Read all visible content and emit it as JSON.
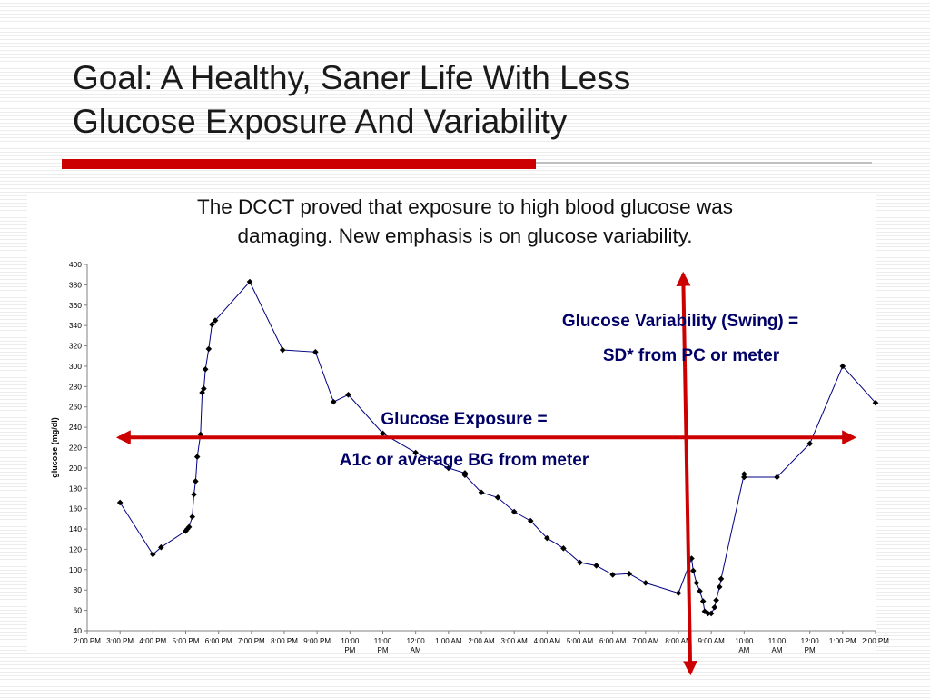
{
  "slide": {
    "title_line1": "Goal: A Healthy, Saner Life With Less",
    "title_line2": "Glucose Exposure And Variability",
    "subtitle_line1": "The DCCT proved that exposure to high blood glucose was",
    "subtitle_line2": "damaging. New emphasis is on glucose variability.",
    "accent_color": "#cc0000"
  },
  "annotations": {
    "variability_line1": "Glucose Variability (Swing) =",
    "variability_line2": "SD* from  PC or meter",
    "exposure_line1": "Glucose Exposure =",
    "exposure_line2": "A1c or average BG from meter",
    "text_color": "#000066",
    "arrow_color": "#cc0000"
  },
  "chart_data": {
    "type": "line",
    "title": "",
    "xlabel": "",
    "ylabel": "glucose (mg/dl)",
    "ylim": [
      40,
      400
    ],
    "yticks": [
      40,
      60,
      80,
      100,
      120,
      140,
      160,
      180,
      200,
      220,
      240,
      260,
      280,
      300,
      320,
      340,
      360,
      380,
      400
    ],
    "xlim": [
      14,
      38
    ],
    "x_units": "hours from midnight of day 1 (e.g. 14 = 2:00 PM, 24 = 12:00 AM, 38 = 2:00 PM next day)",
    "xticks": [
      {
        "x": 14,
        "label": "2:00 PM"
      },
      {
        "x": 15,
        "label": "3:00 PM"
      },
      {
        "x": 16,
        "label": "4:00 PM"
      },
      {
        "x": 17,
        "label": "5:00 PM"
      },
      {
        "x": 18,
        "label": "6:00 PM"
      },
      {
        "x": 19,
        "label": "7:00 PM"
      },
      {
        "x": 20,
        "label": "8:00 PM"
      },
      {
        "x": 21,
        "label": "9:00 PM"
      },
      {
        "x": 22,
        "label": "10:00 PM"
      },
      {
        "x": 23,
        "label": "11:00 PM"
      },
      {
        "x": 24,
        "label": "12:00 AM"
      },
      {
        "x": 25,
        "label": "1:00 AM"
      },
      {
        "x": 26,
        "label": "2:00 AM"
      },
      {
        "x": 27,
        "label": "3:00 AM"
      },
      {
        "x": 28,
        "label": "4:00 AM"
      },
      {
        "x": 29,
        "label": "5:00 AM"
      },
      {
        "x": 30,
        "label": "6:00 AM"
      },
      {
        "x": 31,
        "label": "7:00 AM"
      },
      {
        "x": 32,
        "label": "8:00 AM"
      },
      {
        "x": 33,
        "label": "9:00 AM"
      },
      {
        "x": 34,
        "label": "10:00 AM"
      },
      {
        "x": 35,
        "label": "11:00 AM"
      },
      {
        "x": 36,
        "label": "12:00 PM"
      },
      {
        "x": 37,
        "label": "1:00 PM"
      },
      {
        "x": 38,
        "label": "2:00 PM"
      }
    ],
    "grid": false,
    "series": [
      {
        "color": "#000080",
        "marker": "diamond",
        "points": [
          [
            15.0,
            166
          ],
          [
            16.0,
            115
          ],
          [
            16.25,
            122
          ],
          [
            17.0,
            138
          ],
          [
            17.05,
            140
          ],
          [
            17.1,
            142
          ],
          [
            17.2,
            152
          ],
          [
            17.25,
            174
          ],
          [
            17.3,
            187
          ],
          [
            17.35,
            211
          ],
          [
            17.45,
            233
          ],
          [
            17.5,
            274
          ],
          [
            17.55,
            278
          ],
          [
            17.6,
            297
          ],
          [
            17.7,
            317
          ],
          [
            17.8,
            341
          ],
          [
            17.9,
            345
          ],
          [
            18.95,
            383
          ],
          [
            19.95,
            316
          ],
          [
            20.95,
            314
          ],
          [
            21.5,
            265
          ],
          [
            21.95,
            272
          ],
          [
            23.0,
            234
          ],
          [
            24.0,
            215
          ],
          [
            25.0,
            200
          ],
          [
            25.5,
            195
          ],
          [
            25.5,
            193
          ],
          [
            26.0,
            176
          ],
          [
            26.5,
            171
          ],
          [
            27.0,
            157
          ],
          [
            27.5,
            148
          ],
          [
            28.0,
            131
          ],
          [
            28.5,
            121
          ],
          [
            29.0,
            107
          ],
          [
            29.5,
            104
          ],
          [
            30.0,
            95
          ],
          [
            30.5,
            96
          ],
          [
            31.0,
            87
          ],
          [
            32.0,
            77
          ],
          [
            32.4,
            111
          ],
          [
            32.45,
            99
          ],
          [
            32.55,
            87
          ],
          [
            32.65,
            79
          ],
          [
            32.75,
            69
          ],
          [
            32.8,
            59
          ],
          [
            32.9,
            57
          ],
          [
            33.0,
            57
          ],
          [
            33.1,
            63
          ],
          [
            33.15,
            70
          ],
          [
            33.25,
            83
          ],
          [
            33.3,
            91
          ],
          [
            34.0,
            194
          ],
          [
            34.0,
            191
          ],
          [
            35.0,
            191
          ],
          [
            36.0,
            224
          ],
          [
            37.0,
            300
          ],
          [
            38.0,
            264
          ]
        ]
      }
    ],
    "reference_lines": {
      "horizontal_arrow_y": 230,
      "vertical_arrow_x": 32.2
    }
  }
}
